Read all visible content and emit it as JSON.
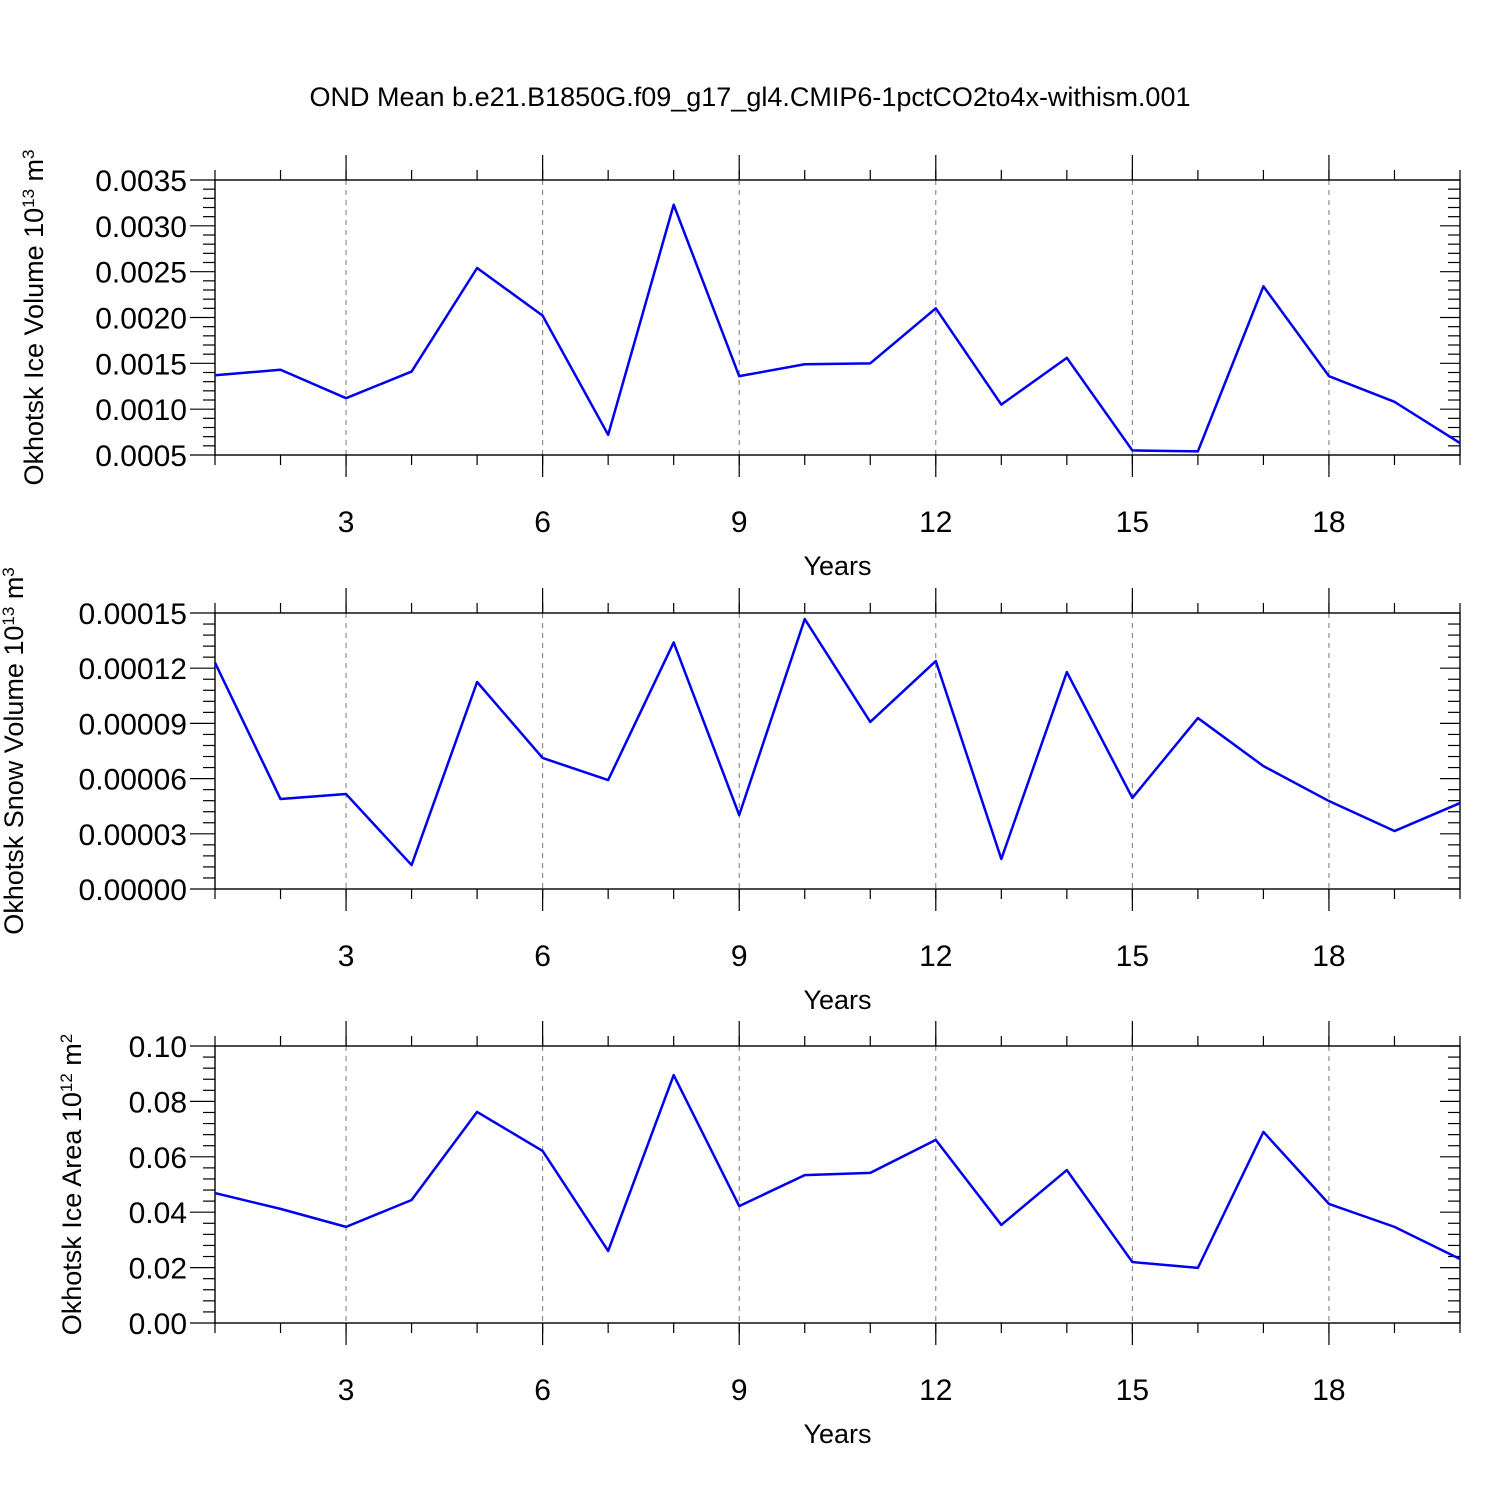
{
  "chart_data": [
    {
      "type": "line",
      "title": "OND Mean b.e21.B1850G.f09_g17_gl4.CMIP6-1pctCO2to4x-withism.001",
      "ylabel": [
        "Okhotsk Ice Volume 10",
        "13",
        " m",
        "3"
      ],
      "xlabel": "Years",
      "x": [
        1,
        2,
        3,
        4,
        5,
        6,
        7,
        8,
        9,
        10,
        11,
        12,
        13,
        14,
        15,
        16,
        17,
        18,
        19,
        20
      ],
      "series": [
        {
          "color": "#0000ee",
          "values": [
            0.00137,
            0.00143,
            0.00112,
            0.00141,
            0.00254,
            0.00202,
            0.00072,
            0.00323,
            0.00136,
            0.00149,
            0.0015,
            0.0021,
            0.00105,
            0.00156,
            0.00055,
            0.00054,
            0.00234,
            0.00136,
            0.00108,
            0.00063
          ]
        }
      ],
      "xlim": [
        1,
        20
      ],
      "xticks": [
        3,
        6,
        9,
        12,
        15,
        18
      ],
      "ylim": [
        0.0005,
        0.0035
      ],
      "yticks": [
        {
          "value": 0.0005,
          "label": "0.0005"
        },
        {
          "value": 0.001,
          "label": "0.0010"
        },
        {
          "value": 0.0015,
          "label": "0.0015"
        },
        {
          "value": 0.002,
          "label": "0.0020"
        },
        {
          "value": 0.0025,
          "label": "0.0025"
        },
        {
          "value": 0.003,
          "label": "0.0030"
        },
        0.0035
      ],
      "grid": true
    },
    {
      "type": "line",
      "ylabel": [
        "Okhotsk Snow Volume 10",
        "13",
        " m",
        "3"
      ],
      "xlabel": "Years",
      "x": [
        1,
        2,
        3,
        4,
        5,
        6,
        7,
        8,
        9,
        10,
        11,
        12,
        13,
        14,
        15,
        16,
        17,
        18,
        19,
        20
      ],
      "series": [
        {
          "color": "#0000ee",
          "values": [
            0.000123,
            4.89e-05,
            5.16e-05,
            1.3e-05,
            0.0001125,
            7.12e-05,
            5.92e-05,
            0.000134,
            4.02e-05,
            0.0001467,
            9.08e-05,
            0.0001239,
            1.63e-05,
            0.0001179,
            4.95e-05,
            9.29e-05,
            6.68e-05,
            4.78e-05,
            3.15e-05,
            4.67e-05
          ]
        }
      ],
      "xlim": [
        1,
        20
      ],
      "xticks": [
        3,
        6,
        9,
        12,
        15,
        18
      ],
      "ylim": [
        0,
        0.00015
      ],
      "yticks": [
        {
          "value": 0,
          "label": "0.00000"
        },
        3e-05,
        6e-05,
        9e-05,
        0.00012,
        0.00015
      ],
      "grid": true
    },
    {
      "type": "line",
      "ylabel": [
        "Okhotsk Ice Area 10",
        "12",
        " m",
        "2"
      ],
      "xlabel": "Years",
      "x": [
        1,
        2,
        3,
        4,
        5,
        6,
        7,
        8,
        9,
        10,
        11,
        12,
        13,
        14,
        15,
        16,
        17,
        18,
        19,
        20
      ],
      "series": [
        {
          "color": "#0000ee",
          "values": [
            0.0469,
            0.0412,
            0.0347,
            0.0444,
            0.0762,
            0.0621,
            0.026,
            0.0895,
            0.0422,
            0.0534,
            0.0542,
            0.0661,
            0.0354,
            0.0552,
            0.022,
            0.0199,
            0.069,
            0.043,
            0.0347,
            0.0231
          ]
        }
      ],
      "xlim": [
        1,
        20
      ],
      "xticks": [
        3,
        6,
        9,
        12,
        15,
        18
      ],
      "ylim": [
        0,
        0.1
      ],
      "yticks": [
        {
          "value": 0,
          "label": "0.00"
        },
        0.02,
        0.04,
        0.06,
        0.08,
        {
          "value": 0.1,
          "label": "0.10"
        }
      ],
      "grid": true
    }
  ]
}
